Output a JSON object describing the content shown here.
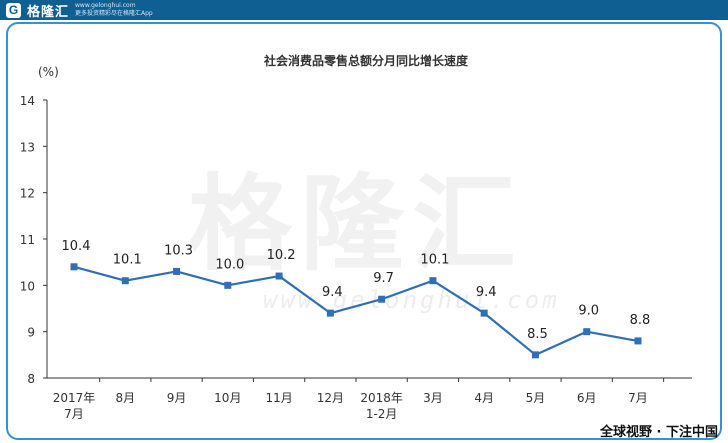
{
  "header": {
    "logo_letter": "G",
    "logo_text": "格隆汇",
    "logo_url": "www.gelonghui.com",
    "logo_slogan": "更多投资精彩尽在格隆汇App"
  },
  "watermark": {
    "text": "格隆汇",
    "url": "www.gelonghui.com"
  },
  "footer": {
    "source": "全球视野 · 下注中国"
  },
  "colors": {
    "line": "#2f6fb8",
    "marker": "#2f6fb8",
    "frame_border": "#3a8ed4",
    "header_bg": "#0f5f93"
  },
  "chart_data": {
    "type": "line",
    "title": "社会消费品零售总额分月同比增长速度",
    "unit_label": "(%)",
    "categories": [
      [
        "2017年",
        "7月"
      ],
      [
        "8月"
      ],
      [
        "9月"
      ],
      [
        "10月"
      ],
      [
        "11月"
      ],
      [
        "12月"
      ],
      [
        "2018年",
        "1-2月"
      ],
      [
        "3月"
      ],
      [
        "4月"
      ],
      [
        "5月"
      ],
      [
        "6月"
      ],
      [
        "7月"
      ]
    ],
    "series": [
      {
        "values": [
          10.4,
          10.1,
          10.3,
          10.0,
          10.2,
          9.4,
          9.7,
          10.1,
          9.4,
          8.5,
          9.0,
          8.8
        ],
        "labels": [
          "10.4",
          "10.1",
          "10.3",
          "10.0",
          "10.2",
          "9.4",
          "9.7",
          "10.1",
          "9.4",
          "8.5",
          "9.0",
          "8.8"
        ]
      }
    ],
    "ylim": [
      8,
      14
    ],
    "yticks": [
      8,
      9,
      10,
      11,
      12,
      13,
      14
    ],
    "grid": false,
    "legend": "none"
  }
}
